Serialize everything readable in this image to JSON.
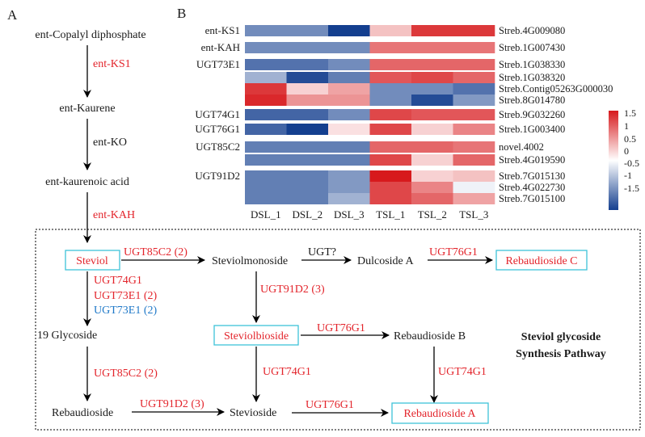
{
  "panel_a": {
    "label": "A",
    "compounds": [
      "ent-Copalyl diphosphate",
      "ent-Kaurene",
      "ent-kaurenoic acid"
    ],
    "enzymes": [
      "ent-KS1",
      "ent-KO",
      "ent-KAH"
    ]
  },
  "panel_b": {
    "label": "B",
    "genes": [
      {
        "group": "ent-KS1",
        "id": "Streb.4G009080"
      },
      {
        "group": "ent-KAH",
        "id": "Streb.1G007430"
      },
      {
        "group": "UGT73E1",
        "id": "Streb.1G038330"
      },
      {
        "group": "UGT73E1",
        "id": "Streb.1G038320"
      },
      {
        "group": "UGT73E1",
        "id": "Streb.Contig05263G000030"
      },
      {
        "group": "UGT73E1",
        "id": "Streb.8G014780"
      },
      {
        "group": "UGT74G1",
        "id": "Streb.9G032260"
      },
      {
        "group": "UGT76G1",
        "id": "Streb.1G003400"
      },
      {
        "group": "UGT85C2",
        "id": "novel.4002"
      },
      {
        "group": "UGT85C2",
        "id": "Streb.4G019590"
      },
      {
        "group": "UGT91D2",
        "id": "Streb.7G015130"
      },
      {
        "group": "UGT91D2",
        "id": "Streb.4G022730"
      },
      {
        "group": "UGT91D2",
        "id": "Streb.7G015100"
      }
    ],
    "group_labels": [
      "ent-KS1",
      "ent-KAH",
      "UGT73E1",
      "UGT74G1",
      "UGT76G1",
      "UGT85C2",
      "UGT91D2"
    ],
    "samples": [
      "DSL_1",
      "DSL_2",
      "DSL_3",
      "TSL_1",
      "TSL_2",
      "TSL_3"
    ],
    "legend_ticks": [
      "1.5",
      "1",
      "0.5",
      "0",
      "-0.5",
      "-1",
      "-1.5"
    ]
  },
  "chart_data": {
    "type": "heatmap",
    "x": [
      "DSL_1",
      "DSL_2",
      "DSL_3",
      "TSL_1",
      "TSL_2",
      "TSL_3"
    ],
    "y": [
      "Streb.4G009080",
      "Streb.1G007430",
      "Streb.1G038330",
      "Streb.1G038320",
      "Streb.Contig05263G000030",
      "Streb.8G014780",
      "Streb.9G032260",
      "Streb.1G003400",
      "novel.4002",
      "Streb.4G019590",
      "Streb.7G015130",
      "Streb.4G022730",
      "Streb.7G015100"
    ],
    "values": [
      [
        -0.9,
        -0.9,
        -1.5,
        0.4,
        1.3,
        1.3
      ],
      [
        -0.9,
        -0.9,
        -0.9,
        0.9,
        0.9,
        0.9
      ],
      [
        -1.1,
        -1.1,
        -0.9,
        1.0,
        1.0,
        1.0
      ],
      [
        -0.6,
        -1.4,
        -1.0,
        1.1,
        1.2,
        1.0
      ],
      [
        1.3,
        0.3,
        0.6,
        -0.9,
        -0.9,
        -1.1
      ],
      [
        1.4,
        0.7,
        0.7,
        -0.9,
        -1.4,
        -0.8
      ],
      [
        -1.2,
        -1.2,
        -0.9,
        1.2,
        1.1,
        1.1
      ],
      [
        -1.2,
        -1.5,
        0.2,
        1.2,
        0.3,
        0.8
      ],
      [
        -1.0,
        -1.0,
        -1.0,
        1.0,
        1.0,
        0.9
      ],
      [
        -1.0,
        -1.0,
        -1.0,
        1.2,
        0.3,
        1.0
      ],
      [
        -1.0,
        -1.0,
        -0.8,
        1.6,
        0.3,
        0.4
      ],
      [
        -1.0,
        -1.0,
        -0.8,
        1.2,
        0.8,
        -0.1
      ],
      [
        -1.0,
        -1.0,
        -0.6,
        1.2,
        1.0,
        0.6
      ]
    ],
    "colorbar": {
      "min": -1.5,
      "max": 1.5,
      "low_color": "#143f8f",
      "mid_color": "#ffffff",
      "high_color": "#d7191c"
    },
    "row_groups": [
      [
        0,
        0,
        "ent-KS1"
      ],
      [
        1,
        1,
        "ent-KAH"
      ],
      [
        2,
        5,
        "UGT73E1"
      ],
      [
        6,
        6,
        "UGT74G1"
      ],
      [
        7,
        7,
        "UGT76G1"
      ],
      [
        8,
        9,
        "UGT85C2"
      ],
      [
        10,
        12,
        "UGT91D2"
      ]
    ]
  },
  "pathway": {
    "title_line1": "Steviol glycoside",
    "title_line2": "Synthesis Pathway",
    "compounds": {
      "steviol": "Steviol",
      "steviolmonoside": "Steviolmonoside",
      "dulcoside_a": "Dulcoside A",
      "rebaudioside_c": "Rebaudioside C",
      "glycoside_19": "19 Glycoside",
      "steviolbioside": "Steviolbioside",
      "rebaudioside_b": "Rebaudioside B",
      "rebaudioside": "Rebaudioside",
      "stevioside": "Stevioside",
      "rebaudioside_a": "Rebaudioside A"
    },
    "enzymes": {
      "ugt85c2_2": "UGT85C2 (2)",
      "ugt_unknown": "UGT?",
      "ugt76g1": "UGT76G1",
      "ugt74g1": "UGT74G1",
      "ugt73e1_2": "UGT73E1 (2)",
      "ugt91d2_3": "UGT91D2 (3)"
    },
    "colors": {
      "enzyme_red": "#e3242b",
      "enzyme_blue": "#1e78c8",
      "box_border": "#3ec3d8",
      "text": "#1a1a1a"
    }
  }
}
